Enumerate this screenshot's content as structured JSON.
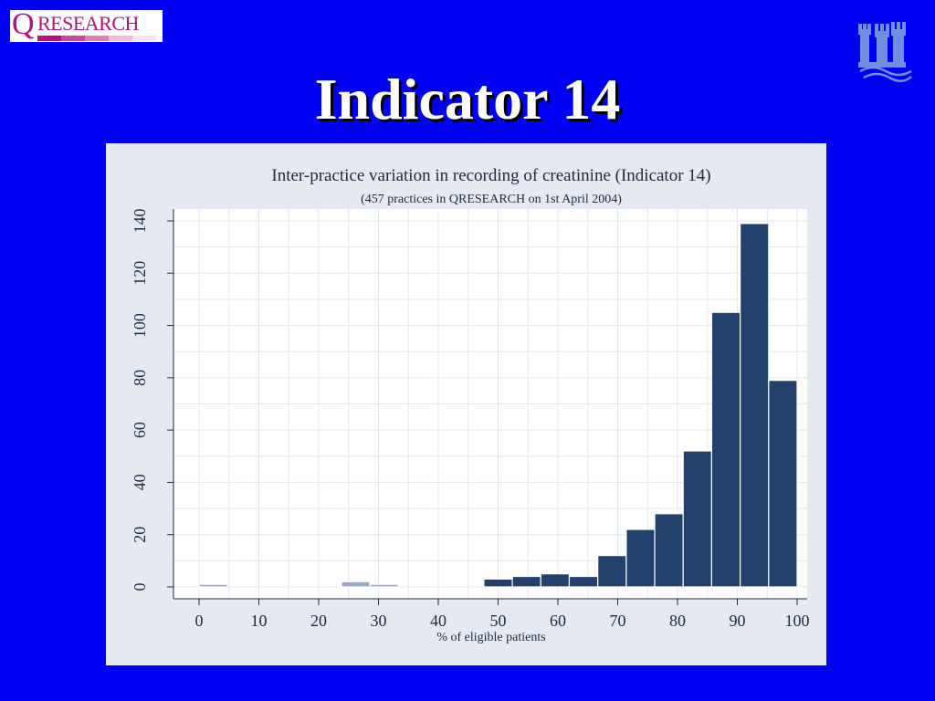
{
  "logo": {
    "q": "Q",
    "text": "RESEARCH",
    "bar_colors": [
      "#b3127c",
      "#c44b98",
      "#d783b8",
      "#ebbdd8",
      "#f7e3ef"
    ]
  },
  "crest": {
    "icon": "castle-crest-icon",
    "color": "#6f8fe0"
  },
  "slide": {
    "title": "Indicator 14"
  },
  "colors": {
    "background": "#0000f5",
    "panel": "#e5e9f2",
    "plot": "#ffffff",
    "bar": "#23416d",
    "bar_light": "#9aa9c8",
    "text": "#1c2a44"
  },
  "chart_data": {
    "type": "bar",
    "title": "Inter-practice variation in recording of creatinine (Indicator 14)",
    "subtitle": "(457 practices in QRESEARCH on 1st April 2004)",
    "xlabel": "% of eligible patients",
    "ylabel": "",
    "xlim": [
      0,
      100
    ],
    "ylim": [
      0,
      140
    ],
    "xticks": [
      "0",
      "10",
      "20",
      "30",
      "40",
      "50",
      "60",
      "70",
      "80",
      "90",
      "100"
    ],
    "yticks": [
      "0",
      "20",
      "40",
      "60",
      "80",
      "100",
      "120",
      "140"
    ],
    "grid": true,
    "bins": [
      {
        "start": 0,
        "end": 4.76,
        "value": 1
      },
      {
        "start": 23.81,
        "end": 28.57,
        "value": 2
      },
      {
        "start": 28.57,
        "end": 33.33,
        "value": 1
      },
      {
        "start": 47.62,
        "end": 52.38,
        "value": 3
      },
      {
        "start": 52.38,
        "end": 57.14,
        "value": 4
      },
      {
        "start": 57.14,
        "end": 61.9,
        "value": 5
      },
      {
        "start": 61.9,
        "end": 66.67,
        "value": 4
      },
      {
        "start": 66.67,
        "end": 71.43,
        "value": 12
      },
      {
        "start": 71.43,
        "end": 76.19,
        "value": 22
      },
      {
        "start": 76.19,
        "end": 80.95,
        "value": 28
      },
      {
        "start": 80.95,
        "end": 85.71,
        "value": 52
      },
      {
        "start": 85.71,
        "end": 90.48,
        "value": 105
      },
      {
        "start": 90.48,
        "end": 95.24,
        "value": 139
      },
      {
        "start": 95.24,
        "end": 100,
        "value": 79
      }
    ]
  }
}
